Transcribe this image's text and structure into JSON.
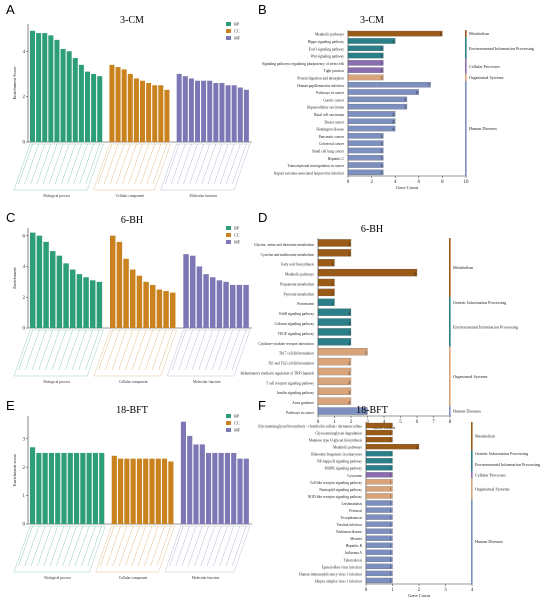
{
  "colors": {
    "BP": "#2e9e7a",
    "CC": "#c9821e",
    "MF": "#7d78b5",
    "Metabolism": "#9a5b18",
    "Genetic Information Processing": "#2b7f88",
    "Environmental Information Processing": "#2b7f88",
    "Cellular Processes": "#8a6db0",
    "Organismal Systems": "#d9a47a",
    "Human Diseases": "#7c8fbf"
  },
  "panels": {
    "A": {
      "letter": "A",
      "title": "3-CM",
      "ylabel": "Enrichment Score",
      "legend": [
        "BP",
        "CC",
        "MF"
      ],
      "groups": [
        "Biological process",
        "Cellular component",
        "Molecular function"
      ]
    },
    "B": {
      "letter": "B",
      "title": "3-CM",
      "xlabel": "Gene Count"
    },
    "C": {
      "letter": "C",
      "title": "6-BH",
      "ylabel": "Enrichment",
      "legend": [
        "BP",
        "CC",
        "MF"
      ],
      "groups": [
        "Biological process",
        "Cellular component",
        "Molecular function"
      ]
    },
    "D": {
      "letter": "D",
      "title": "6-BH",
      "xlabel": "Gene Count"
    },
    "E": {
      "letter": "E",
      "title": "18-BFT",
      "ylabel": "Enrichment score",
      "legend": [
        "BP",
        "CC",
        "MF"
      ],
      "groups": [
        "Biological process",
        "Cellular component",
        "Molecular function"
      ]
    },
    "F": {
      "letter": "F",
      "title": "18-BFT",
      "xlabel": "Gene Count"
    }
  },
  "chart_data": [
    {
      "id": "A",
      "type": "bar",
      "title": "3-CM",
      "ylabel": "Enrichment Score",
      "ylim": [
        0,
        5.2
      ],
      "yticks": [
        0,
        2,
        4
      ],
      "series": [
        {
          "name": "BP",
          "values": [
            4.9,
            4.8,
            4.8,
            4.7,
            4.5,
            4.1,
            4.0,
            3.7,
            3.4,
            3.1,
            3.0,
            2.9
          ]
        },
        {
          "name": "CC",
          "values": [
            3.4,
            3.3,
            3.2,
            3.0,
            2.8,
            2.7,
            2.6,
            2.5,
            2.5,
            2.3
          ]
        },
        {
          "name": "MF",
          "values": [
            3.0,
            2.9,
            2.8,
            2.7,
            2.7,
            2.7,
            2.6,
            2.6,
            2.5,
            2.5,
            2.4,
            2.3
          ]
        }
      ]
    },
    {
      "id": "B",
      "type": "bar",
      "title": "3-CM",
      "xlabel": "Gene Count",
      "xlim": [
        0,
        10
      ],
      "xticks": [
        0,
        2,
        4,
        6,
        8,
        10
      ],
      "categories": [
        "Metabolic pathways",
        "Hippo signaling pathway",
        "FoxO signaling pathway",
        "Wnt signaling pathway",
        "Signaling pathways regulating pluripotency of stem cells",
        "Tight junction",
        "Protein digestion and absorption",
        "Human papillomavirus infection",
        "Pathways in cancer",
        "Gastric cancer",
        "Hepatocellular carcinoma",
        "Basal cell carcinoma",
        "Breast cancer",
        "Huntington disease",
        "Pancreatic cancer",
        "Colorectal cancer",
        "Small cell lung cancer",
        "Hepatitis C",
        "Transcriptional misregulation in cancer",
        "Kaposi sarcoma-associated herpesvirus infection"
      ],
      "values": [
        8,
        4,
        3,
        3,
        3,
        3,
        3,
        7,
        6,
        5,
        5,
        4,
        4,
        4,
        3,
        3,
        3,
        3,
        3,
        3
      ],
      "classes": [
        "Metabolism",
        "Environmental Information Processing",
        "Environmental Information Processing",
        "Environmental Information Processing",
        "Cellular Processes",
        "Cellular Processes",
        "Organismal Systems",
        "Human Diseases",
        "Human Diseases",
        "Human Diseases",
        "Human Diseases",
        "Human Diseases",
        "Human Diseases",
        "Human Diseases",
        "Human Diseases",
        "Human Diseases",
        "Human Diseases",
        "Human Diseases",
        "Human Diseases",
        "Human Diseases"
      ],
      "class_labels": [
        "Metabolism",
        "Environmental Information Processing",
        "Cellular Processes",
        "Organismal Systems",
        "Human Diseases"
      ]
    },
    {
      "id": "C",
      "type": "bar",
      "title": "6-BH",
      "ylabel": "Enrichment",
      "ylim": [
        0,
        6.5
      ],
      "yticks": [
        0,
        2,
        4,
        6
      ],
      "series": [
        {
          "name": "BP",
          "values": [
            6.2,
            6.0,
            5.6,
            5.0,
            4.7,
            4.2,
            3.8,
            3.5,
            3.3,
            3.1,
            3.0
          ]
        },
        {
          "name": "CC",
          "values": [
            6.0,
            5.6,
            4.5,
            3.8,
            3.4,
            3.0,
            2.8,
            2.5,
            2.4,
            2.3
          ]
        },
        {
          "name": "MF",
          "values": [
            4.8,
            4.7,
            4.0,
            3.5,
            3.3,
            3.1,
            3.0,
            2.8,
            2.8,
            2.8
          ]
        }
      ]
    },
    {
      "id": "D",
      "type": "bar",
      "title": "6-BH",
      "xlabel": "Gene Count",
      "xlim": [
        0,
        8
      ],
      "xticks": [
        0,
        1,
        2,
        3,
        4,
        5,
        6,
        7,
        8
      ],
      "categories": [
        "Glycine, serine and threonine metabolism",
        "Cysteine and methionine metabolism",
        "Fatty acid biosynthesis",
        "Metabolic pathways",
        "Propanoate metabolism",
        "Pyruvate metabolism",
        "Proteasome",
        "ErbB signaling pathway",
        "Calcium signaling pathway",
        "VEGF signaling pathway",
        "Cytokine-cytokine receptor interaction",
        "Th17 cell differentiation",
        "Th1 and Th2 cell differentiation",
        "Inflammatory mediator regulation of TRP channels",
        "T cell receptor signaling pathway",
        "Insulin signaling pathway",
        "Axon guidance",
        "Pathways in cancer"
      ],
      "values": [
        2,
        2,
        1,
        6,
        1,
        1,
        1,
        2,
        2,
        2,
        2,
        3,
        2,
        2,
        2,
        2,
        2,
        3
      ],
      "classes": [
        "Metabolism",
        "Metabolism",
        "Metabolism",
        "Metabolism",
        "Metabolism",
        "Metabolism",
        "Genetic Information Processing",
        "Environmental Information Processing",
        "Environmental Information Processing",
        "Environmental Information Processing",
        "Environmental Information Processing",
        "Organismal Systems",
        "Organismal Systems",
        "Organismal Systems",
        "Organismal Systems",
        "Organismal Systems",
        "Organismal Systems",
        "Human Diseases"
      ],
      "class_labels": [
        "Metabolism",
        "Genetic Information Processing",
        "Environmental Information Processing",
        "Organismal Systems",
        "Human Diseases"
      ]
    },
    {
      "id": "E",
      "type": "bar",
      "title": "18-BFT",
      "ylabel": "Enrichment score",
      "ylim": [
        0,
        3.8
      ],
      "yticks": [
        0,
        1,
        2,
        3
      ],
      "series": [
        {
          "name": "BP",
          "values": [
            2.7,
            2.5,
            2.5,
            2.5,
            2.5,
            2.5,
            2.5,
            2.5,
            2.5,
            2.5,
            2.5,
            2.5
          ]
        },
        {
          "name": "CC",
          "values": [
            2.4,
            2.3,
            2.3,
            2.3,
            2.3,
            2.3,
            2.3,
            2.3,
            2.3,
            2.2
          ]
        },
        {
          "name": "MF",
          "values": [
            3.6,
            3.1,
            2.8,
            2.8,
            2.5,
            2.5,
            2.5,
            2.5,
            2.5,
            2.3,
            2.3
          ]
        }
      ]
    },
    {
      "id": "F",
      "type": "bar",
      "title": "18-BFT",
      "xlabel": "Gene Count",
      "xlim": [
        0,
        4
      ],
      "xticks": [
        0,
        1,
        2,
        3,
        4
      ],
      "categories": [
        "Glycosaminoglycan biosynthesis - chondroitin sulfate / dermatan sulfate",
        "Glycosaminoglycan degradation",
        "Mannose type O-glycan biosynthesis",
        "Metabolic pathways",
        "Ribosome biogenesis in eukaryotes",
        "NF-kappa B signaling pathway",
        "MAPK signaling pathway",
        "Lysosome",
        "Toll-like receptor signaling pathway",
        "Neutrophil signaling pathway",
        "NOD-like receptor signaling pathway",
        "Leishmaniasis",
        "Pertussis",
        "Toxoplasmosis",
        "Yersinia infection",
        "Parkinson disease",
        "Measles",
        "Hepatitis B",
        "Influenza A",
        "Tuberculosis",
        "Epstein-Barr virus infection",
        "Human immunodeficiency virus 1 infection",
        "Herpes simplex virus 1 infection"
      ],
      "values": [
        1,
        1,
        1,
        2,
        1,
        1,
        1,
        1,
        1,
        1,
        1,
        1,
        1,
        1,
        1,
        1,
        1,
        1,
        1,
        1,
        1,
        1,
        1
      ],
      "classes": [
        "Metabolism",
        "Metabolism",
        "Metabolism",
        "Metabolism",
        "Genetic Information Processing",
        "Environmental Information Processing",
        "Environmental Information Processing",
        "Cellular Processes",
        "Organismal Systems",
        "Organismal Systems",
        "Organismal Systems",
        "Human Diseases",
        "Human Diseases",
        "Human Diseases",
        "Human Diseases",
        "Human Diseases",
        "Human Diseases",
        "Human Diseases",
        "Human Diseases",
        "Human Diseases",
        "Human Diseases",
        "Human Diseases",
        "Human Diseases"
      ],
      "class_labels": [
        "Metabolism",
        "Genetic Information Processing",
        "Environmental Information Processing",
        "Cellular Processes",
        "Organismal Systems",
        "Human Diseases"
      ]
    }
  ]
}
